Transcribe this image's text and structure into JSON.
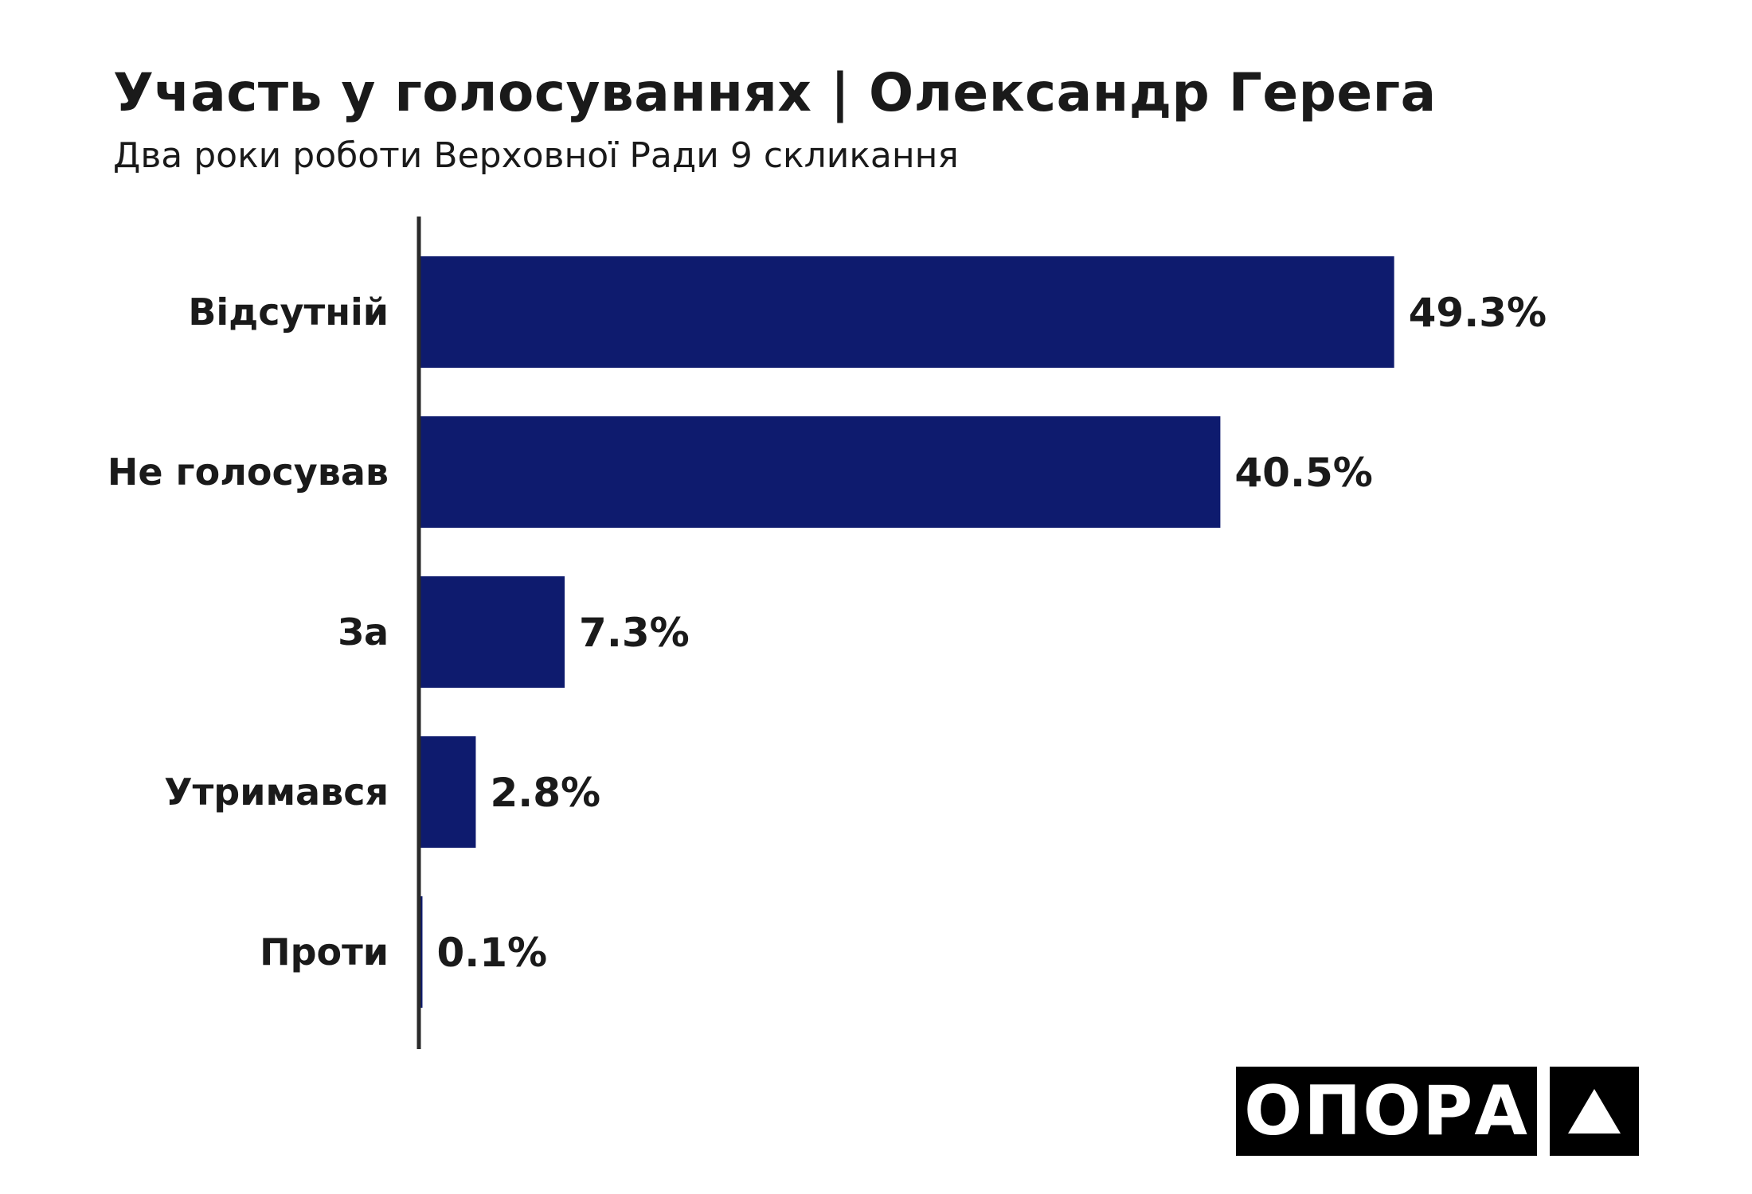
{
  "chart_data": {
    "type": "bar",
    "orientation": "horizontal",
    "title": "Участь у голосуваннях | Олександр Герега",
    "subtitle": "Два роки роботи Верховної Ради 9 скликання",
    "categories": [
      "Відсутній",
      "Не голосував",
      "За",
      "Утримався",
      "Проти"
    ],
    "values": [
      49.3,
      40.5,
      7.3,
      2.8,
      0.1
    ],
    "value_labels": [
      "49.3%",
      "40.5%",
      "7.3%",
      "2.8%",
      "0.1%"
    ],
    "xlim": [
      0,
      100
    ],
    "grid": false,
    "bar_color": "#0e1b6e"
  },
  "logo": {
    "text": "ОПОРА",
    "icon": "triangle-icon"
  }
}
